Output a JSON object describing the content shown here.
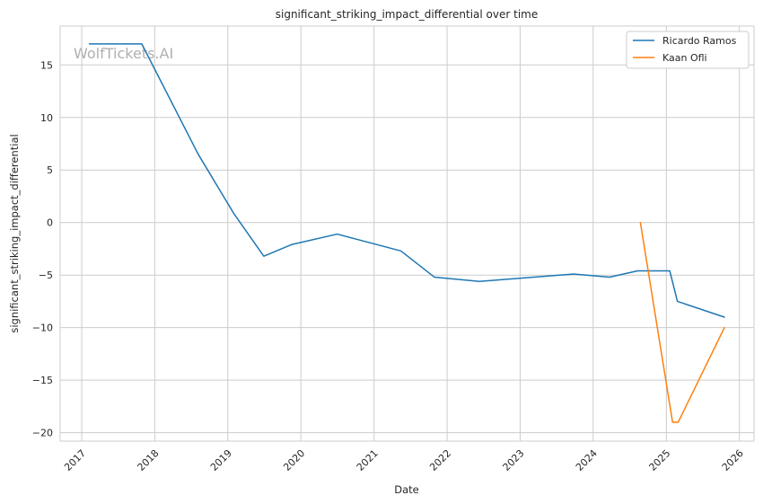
{
  "watermark": "WolfTickets.AI",
  "chart_data": {
    "type": "line",
    "title": "significant_striking_impact_differential over time",
    "xlabel": "Date",
    "ylabel": "significant_striking_impact_differential",
    "xlim": [
      "2016-09-15",
      "2026-03-15"
    ],
    "ylim": [
      -20.8,
      18.7
    ],
    "x_ticks": [
      "2017",
      "2018",
      "2019",
      "2020",
      "2021",
      "2022",
      "2023",
      "2024",
      "2025",
      "2026"
    ],
    "y_ticks": [
      15,
      10,
      5,
      0,
      -5,
      -10,
      -15,
      -20
    ],
    "y_tick_labels": [
      "15",
      "10",
      "5",
      "0",
      "−5",
      "−10",
      "−15",
      "−20"
    ],
    "grid": true,
    "legend_position": "top-right",
    "series": [
      {
        "name": "Ricardo Ramos",
        "color": "#1f77b4",
        "points": [
          {
            "x": "2017-02-08",
            "y": 17.0
          },
          {
            "x": "2017-10-28",
            "y": 17.0
          },
          {
            "x": "2018-08-06",
            "y": 6.5
          },
          {
            "x": "2019-02-02",
            "y": 0.8
          },
          {
            "x": "2019-06-30",
            "y": -3.2
          },
          {
            "x": "2019-11-15",
            "y": -2.1
          },
          {
            "x": "2020-07-01",
            "y": -1.1
          },
          {
            "x": "2021-05-15",
            "y": -2.7
          },
          {
            "x": "2021-10-30",
            "y": -5.2
          },
          {
            "x": "2022-06-11",
            "y": -5.6
          },
          {
            "x": "2023-09-25",
            "y": -4.9
          },
          {
            "x": "2024-03-23",
            "y": -5.2
          },
          {
            "x": "2024-08-10",
            "y": -4.6
          },
          {
            "x": "2025-01-18",
            "y": -4.6
          },
          {
            "x": "2025-02-25",
            "y": -7.5
          },
          {
            "x": "2025-10-18",
            "y": -9.0
          }
        ]
      },
      {
        "name": "Kaan Ofli",
        "color": "#ff7f0e",
        "points": [
          {
            "x": "2024-08-24",
            "y": 0.0
          },
          {
            "x": "2025-02-01",
            "y": -19.0
          },
          {
            "x": "2025-03-01",
            "y": -19.0
          },
          {
            "x": "2025-10-18",
            "y": -10.0
          }
        ]
      }
    ]
  }
}
